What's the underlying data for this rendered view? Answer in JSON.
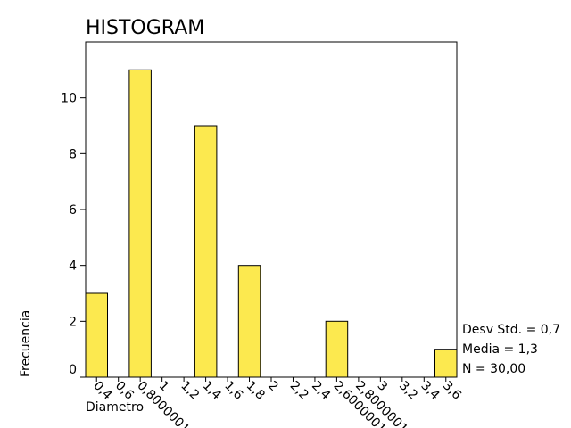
{
  "chart_data": {
    "type": "bar",
    "title": "HISTOGRAM",
    "xlabel": "Diametro",
    "ylabel": "Frecuencia",
    "categories": [
      "0,4",
      "0,6",
      "0,8000001",
      "1",
      "1,2",
      "1,4",
      "1,6",
      "1,8",
      "2",
      "2,2",
      "2,4",
      "2,6000001",
      "2,8000001",
      "3",
      "3,2",
      "3,4",
      "3,6"
    ],
    "values": [
      3,
      0,
      11,
      0,
      0,
      9,
      0,
      4,
      0,
      0,
      0,
      2,
      0,
      0,
      0,
      0,
      1
    ],
    "ylim": [
      0,
      12
    ],
    "yticks": [
      0,
      2,
      4,
      6,
      8,
      10
    ],
    "bar_color": "#FCE94F",
    "stats": [
      "Desv Std. = 0,7",
      "Media = 1,3",
      "N = 30,00"
    ]
  }
}
